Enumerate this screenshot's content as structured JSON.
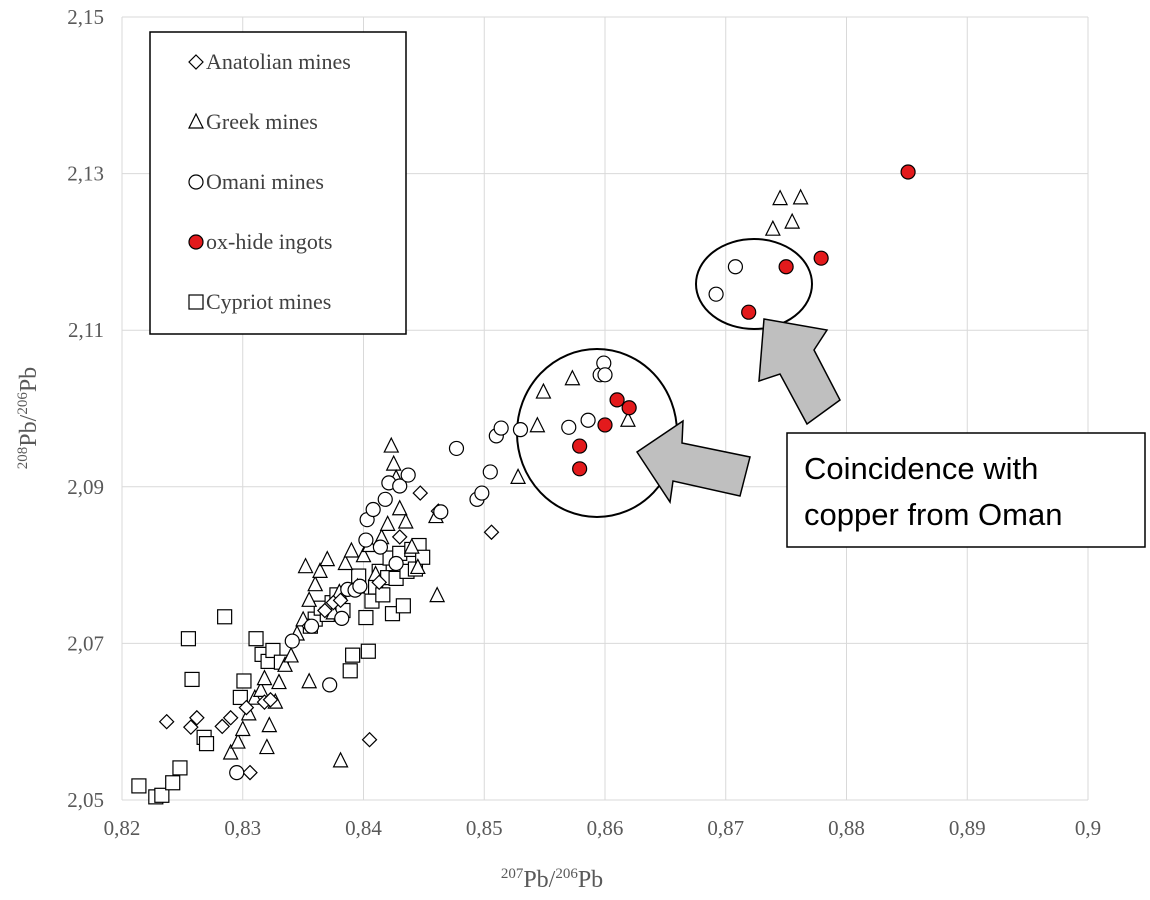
{
  "chart_data": {
    "type": "scatter",
    "xlabel": {
      "base_pre": "",
      "sup1": "207",
      "mid": "Pb/",
      "sup2": "206",
      "end": "Pb"
    },
    "ylabel": {
      "sup1": "208",
      "mid": "Pb/",
      "sup2": "206",
      "end": "Pb"
    },
    "xlim": [
      0.82,
      0.9
    ],
    "ylim": [
      2.05,
      2.15
    ],
    "xticks": [
      "0,82",
      "0,83",
      "0,84",
      "0,85",
      "0,86",
      "0,87",
      "0,88",
      "0,89",
      "0,9"
    ],
    "yticks": [
      "2,05",
      "2,07",
      "2,09",
      "2,11",
      "2,13",
      "2,15"
    ],
    "grid": true,
    "legend_position": "top-left",
    "annotation": [
      "Coincidence with",
      "copper from Oman"
    ],
    "colors": {
      "ingot_fill": "#e31a1c",
      "grid": "#d9d9d9",
      "marker_stroke": "#000000",
      "callout_arrow": "#bfbfbf"
    },
    "series": [
      {
        "name": "Anatolian mines",
        "marker": "diamond",
        "points": [
          [
            0.8237,
            2.06
          ],
          [
            0.8257,
            2.0593
          ],
          [
            0.8262,
            2.0605
          ],
          [
            0.8283,
            2.0594
          ],
          [
            0.829,
            2.0605
          ],
          [
            0.8303,
            2.0618
          ],
          [
            0.8318,
            2.0625
          ],
          [
            0.8323,
            2.0628
          ],
          [
            0.8306,
            2.0535
          ],
          [
            0.8355,
            2.0722
          ],
          [
            0.8368,
            2.0742
          ],
          [
            0.8375,
            2.0752
          ],
          [
            0.8381,
            2.0755
          ],
          [
            0.8413,
            2.0778
          ],
          [
            0.843,
            2.0836
          ],
          [
            0.8447,
            2.0892
          ],
          [
            0.8462,
            2.0869
          ],
          [
            0.8506,
            2.0842
          ],
          [
            0.8405,
            2.0577
          ]
        ]
      },
      {
        "name": "Greek mines",
        "marker": "triangle",
        "points": [
          [
            0.829,
            2.056
          ],
          [
            0.8296,
            2.0574
          ],
          [
            0.83,
            2.059
          ],
          [
            0.8305,
            2.061
          ],
          [
            0.831,
            2.063
          ],
          [
            0.8315,
            2.064
          ],
          [
            0.8318,
            2.0655
          ],
          [
            0.832,
            2.0567
          ],
          [
            0.8322,
            2.0595
          ],
          [
            0.8327,
            2.0625
          ],
          [
            0.833,
            2.065
          ],
          [
            0.8335,
            2.0672
          ],
          [
            0.834,
            2.0684
          ],
          [
            0.8345,
            2.0712
          ],
          [
            0.835,
            2.073
          ],
          [
            0.8352,
            2.0798
          ],
          [
            0.8355,
            2.0755
          ],
          [
            0.836,
            2.0775
          ],
          [
            0.8364,
            2.0792
          ],
          [
            0.837,
            2.0807
          ],
          [
            0.8375,
            2.0739
          ],
          [
            0.838,
            2.0765
          ],
          [
            0.8385,
            2.0802
          ],
          [
            0.839,
            2.0818
          ],
          [
            0.8395,
            2.0772
          ],
          [
            0.84,
            2.0812
          ],
          [
            0.8405,
            2.0825
          ],
          [
            0.841,
            2.0788
          ],
          [
            0.8415,
            2.0835
          ],
          [
            0.842,
            2.0852
          ],
          [
            0.8423,
            2.0952
          ],
          [
            0.8425,
            2.0929
          ],
          [
            0.8427,
            2.0911
          ],
          [
            0.843,
            2.0872
          ],
          [
            0.8435,
            2.0855
          ],
          [
            0.844,
            2.0823
          ],
          [
            0.8445,
            2.0797
          ],
          [
            0.846,
            2.0862
          ],
          [
            0.8461,
            2.0761
          ],
          [
            0.8381,
            2.055
          ],
          [
            0.8355,
            2.0651
          ],
          [
            0.8528,
            2.0912
          ],
          [
            0.8544,
            2.0978
          ],
          [
            0.8549,
            2.1021
          ],
          [
            0.8573,
            2.1038
          ],
          [
            0.8619,
            2.0985
          ],
          [
            0.8739,
            2.1229
          ],
          [
            0.8745,
            2.1268
          ],
          [
            0.8755,
            2.1238
          ],
          [
            0.8762,
            2.1269
          ]
        ]
      },
      {
        "name": "Omani mines",
        "marker": "circle",
        "points": [
          [
            0.8295,
            2.0535
          ],
          [
            0.8341,
            2.0703
          ],
          [
            0.8357,
            2.0722
          ],
          [
            0.8372,
            2.0647
          ],
          [
            0.8382,
            2.0732
          ],
          [
            0.8387,
            2.0769
          ],
          [
            0.8393,
            2.0768
          ],
          [
            0.8397,
            2.0773
          ],
          [
            0.8402,
            2.0832
          ],
          [
            0.8403,
            2.0858
          ],
          [
            0.8408,
            2.0871
          ],
          [
            0.8414,
            2.0823
          ],
          [
            0.8418,
            2.0884
          ],
          [
            0.8421,
            2.0905
          ],
          [
            0.8427,
            2.0802
          ],
          [
            0.843,
            2.0901
          ],
          [
            0.8437,
            2.0915
          ],
          [
            0.8464,
            2.0868
          ],
          [
            0.8477,
            2.0949
          ],
          [
            0.8494,
            2.0884
          ],
          [
            0.8498,
            2.0892
          ],
          [
            0.8505,
            2.0919
          ],
          [
            0.851,
            2.0965
          ],
          [
            0.8514,
            2.0975
          ],
          [
            0.853,
            2.0973
          ],
          [
            0.857,
            2.0976
          ],
          [
            0.8586,
            2.0985
          ],
          [
            0.8596,
            2.1043
          ],
          [
            0.8599,
            2.1058
          ],
          [
            0.86,
            2.1043
          ],
          [
            0.8692,
            2.1146
          ],
          [
            0.8708,
            2.1181
          ]
        ]
      },
      {
        "name": "ox-hide ingots",
        "marker": "filled-circle",
        "points": [
          [
            0.8579,
            2.0923
          ],
          [
            0.8579,
            2.0952
          ],
          [
            0.86,
            2.0979
          ],
          [
            0.861,
            2.1011
          ],
          [
            0.862,
            2.1001
          ],
          [
            0.8719,
            2.1123
          ],
          [
            0.875,
            2.1181
          ],
          [
            0.8779,
            2.1192
          ],
          [
            0.8851,
            2.1302
          ]
        ]
      },
      {
        "name": "Cypriot mines",
        "marker": "square",
        "points": [
          [
            0.8214,
            2.0518
          ],
          [
            0.8228,
            2.0504
          ],
          [
            0.8233,
            2.0506
          ],
          [
            0.8242,
            2.0522
          ],
          [
            0.8248,
            2.0541
          ],
          [
            0.8255,
            2.0706
          ],
          [
            0.8258,
            2.0654
          ],
          [
            0.8268,
            2.058
          ],
          [
            0.827,
            2.0572
          ],
          [
            0.8285,
            2.0734
          ],
          [
            0.8298,
            2.0631
          ],
          [
            0.8301,
            2.0652
          ],
          [
            0.8311,
            2.0706
          ],
          [
            0.8316,
            2.0686
          ],
          [
            0.8321,
            2.0677
          ],
          [
            0.8325,
            2.0691
          ],
          [
            0.8332,
            2.0676
          ],
          [
            0.8356,
            2.0722
          ],
          [
            0.836,
            2.0731
          ],
          [
            0.8365,
            2.0745
          ],
          [
            0.837,
            2.0737
          ],
          [
            0.8374,
            2.0752
          ],
          [
            0.8378,
            2.0762
          ],
          [
            0.8383,
            2.0742
          ],
          [
            0.8389,
            2.0665
          ],
          [
            0.8391,
            2.0685
          ],
          [
            0.8396,
            2.0786
          ],
          [
            0.8402,
            2.0733
          ],
          [
            0.8404,
            2.069
          ],
          [
            0.8407,
            2.0754
          ],
          [
            0.841,
            2.0772
          ],
          [
            0.8413,
            2.0792
          ],
          [
            0.8416,
            2.0762
          ],
          [
            0.842,
            2.0784
          ],
          [
            0.8422,
            2.0809
          ],
          [
            0.8424,
            2.0738
          ],
          [
            0.8427,
            2.0783
          ],
          [
            0.843,
            2.0815
          ],
          [
            0.8433,
            2.0748
          ],
          [
            0.8436,
            2.0792
          ],
          [
            0.844,
            2.082
          ],
          [
            0.8443,
            2.0795
          ],
          [
            0.8446,
            2.0825
          ],
          [
            0.8449,
            2.081
          ]
        ]
      }
    ]
  }
}
